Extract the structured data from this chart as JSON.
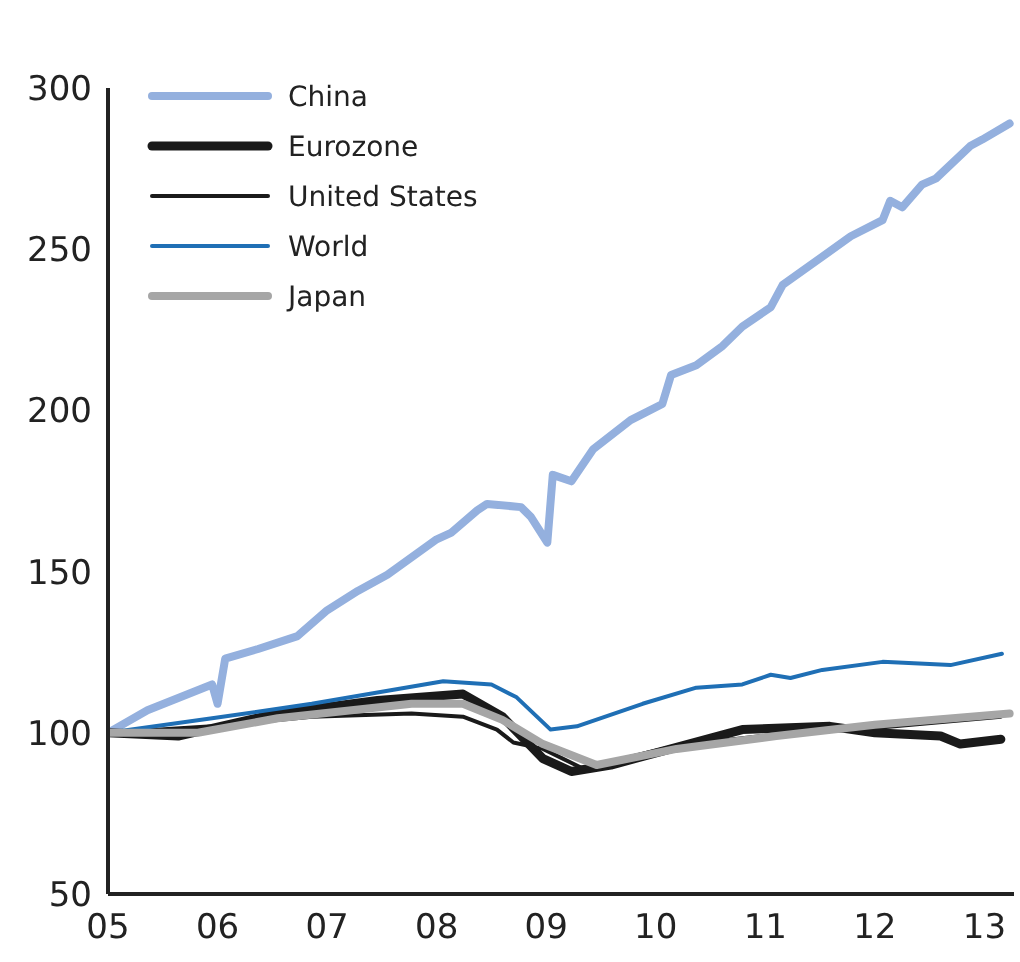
{
  "chart_data": {
    "type": "line",
    "xlim": [
      2005,
      2013.27
    ],
    "xticks": [
      {
        "value": 2005,
        "label": "05"
      },
      {
        "value": 2006,
        "label": "06"
      },
      {
        "value": 2007,
        "label": "07"
      },
      {
        "value": 2008,
        "label": "08"
      },
      {
        "value": 2009,
        "label": "09"
      },
      {
        "value": 2010,
        "label": "10"
      },
      {
        "value": 2011,
        "label": "11"
      },
      {
        "value": 2012,
        "label": "12"
      },
      {
        "value": 2013,
        "label": "13"
      }
    ],
    "ylim": [
      50,
      300
    ],
    "yticks": [
      50,
      100,
      150,
      200,
      250,
      300
    ],
    "grid": false,
    "legend": "top left",
    "line_style": "solid",
    "marker": "none",
    "series": [
      {
        "name": "China",
        "color": "#94b0de",
        "x": [
          2005,
          2005.36,
          2005.95,
          2006,
          2006.07,
          2006.37,
          2006.73,
          2007,
          2007.28,
          2007.55,
          2008,
          2008.13,
          2008.37,
          2008.46,
          2008.77,
          2008.86,
          2009.01,
          2009.06,
          2009.23,
          2009.43,
          2009.77,
          2010.06,
          2010.14,
          2010.37,
          2010.61,
          2010.79,
          2011.05,
          2011.16,
          2011.41,
          2011.78,
          2012.07,
          2012.14,
          2012.25,
          2012.43,
          2012.56,
          2012.87,
          2012.98,
          2013.23
        ],
        "values": [
          100,
          107,
          115,
          109,
          123,
          126,
          130,
          138,
          144,
          149,
          160,
          162,
          169,
          171,
          170,
          167,
          159,
          180,
          178,
          188,
          197,
          202,
          211,
          214,
          220,
          226,
          232,
          239,
          245,
          254,
          259,
          265,
          263,
          270,
          272,
          282,
          284,
          289
        ]
      },
      {
        "name": "Eurozone",
        "color": "#1a1a1a",
        "x": [
          2005,
          2005.64,
          2006.55,
          2007.46,
          2008.24,
          2008.6,
          2008.97,
          2009.23,
          2009.59,
          2010.79,
          2011.59,
          2012,
          2012.6,
          2012.78,
          2013.15
        ],
        "values": [
          100,
          99,
          106,
          110,
          112,
          105,
          92,
          88,
          90,
          101,
          102,
          100,
          99,
          96.5,
          98
        ]
      },
      {
        "name": "United States",
        "color": "#1a1a1a",
        "x": [
          2005,
          2005.95,
          2006.86,
          2007.77,
          2008.24,
          2008.55,
          2008.7,
          2008.97,
          2009.33,
          2010.19,
          2011.1,
          2012,
          2013.15
        ],
        "values": [
          100,
          102,
          105,
          106,
          105,
          101,
          97,
          95,
          89,
          96,
          99.5,
          101.5,
          105
        ]
      },
      {
        "name": "World",
        "color": "#1f6fb5",
        "x": [
          2005,
          2005.95,
          2006.86,
          2008.06,
          2008.5,
          2008.73,
          2009.04,
          2009.28,
          2009.88,
          2010.37,
          2010.79,
          2011.05,
          2011.23,
          2011.52,
          2012.07,
          2012.69,
          2013.16
        ],
        "values": [
          100,
          104.5,
          109,
          116,
          115,
          111,
          101,
          102,
          109,
          114,
          115,
          118,
          117,
          119.5,
          122,
          121,
          124.5
        ]
      },
      {
        "name": "Japan",
        "color": "#a6a6a6",
        "x": [
          2005,
          2005.82,
          2006.55,
          2007.77,
          2008.24,
          2008.6,
          2008.97,
          2009.46,
          2010.19,
          2011.1,
          2012,
          2013.23
        ],
        "values": [
          100,
          100,
          104.5,
          109,
          109,
          104,
          96.5,
          90,
          95,
          99,
          102.5,
          106
        ]
      }
    ]
  }
}
